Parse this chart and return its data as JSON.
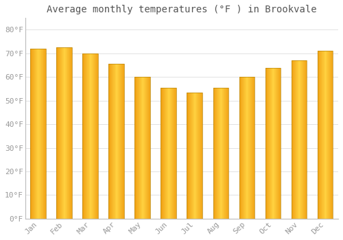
{
  "title": "Average monthly temperatures (°F ) in Brookvale",
  "months": [
    "Jan",
    "Feb",
    "Mar",
    "Apr",
    "May",
    "Jun",
    "Jul",
    "Aug",
    "Sep",
    "Oct",
    "Nov",
    "Dec"
  ],
  "values": [
    72,
    72.5,
    70,
    65.5,
    60,
    55.5,
    53.5,
    55.5,
    60,
    64,
    67,
    71
  ],
  "bar_color_center": "#FFD040",
  "bar_color_edge": "#F0A000",
  "bar_edge_color": "#B8860B",
  "background_color": "#FFFFFF",
  "grid_color": "#DDDDDD",
  "ylim": [
    0,
    85
  ],
  "yticks": [
    0,
    10,
    20,
    30,
    40,
    50,
    60,
    70,
    80
  ],
  "ytick_labels": [
    "0°F",
    "10°F",
    "20°F",
    "30°F",
    "40°F",
    "50°F",
    "60°F",
    "70°F",
    "80°F"
  ],
  "title_fontsize": 10,
  "tick_fontsize": 8,
  "tick_color": "#999999",
  "font_family": "monospace",
  "bar_width": 0.6
}
